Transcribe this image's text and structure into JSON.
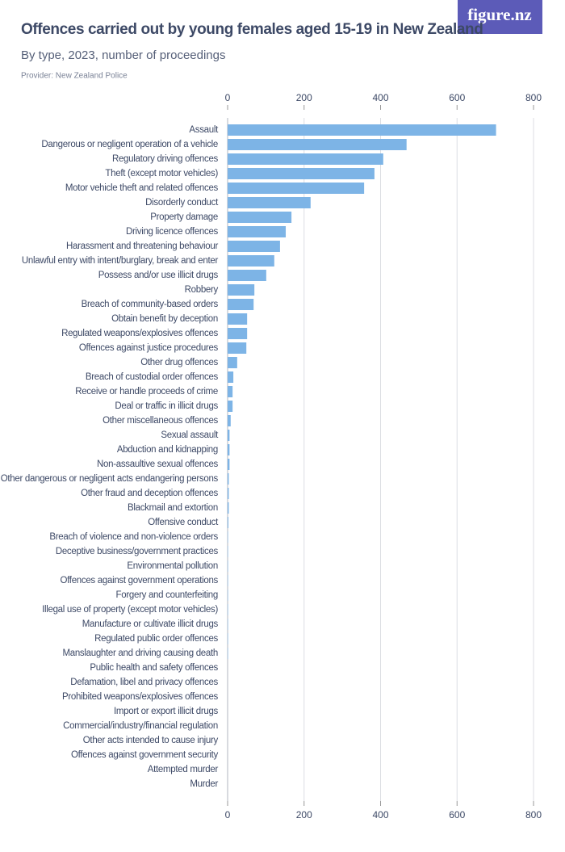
{
  "brand": "figure.nz",
  "chart_data": {
    "type": "hbar",
    "title": "Offences carried out by young females aged 15-19 in New Zealand",
    "subtitle": "By type, 2023, number of proceedings",
    "provider": "Provider: New Zealand Police",
    "color": "#7db4e6",
    "grid": true,
    "xlim": [
      0,
      800
    ],
    "xticks": [
      0,
      200,
      400,
      600,
      800
    ],
    "categories": [
      "Assault",
      "Dangerous or negligent operation of a vehicle",
      "Regulatory driving offences",
      "Theft (except motor vehicles)",
      "Motor vehicle theft and related offences",
      "Disorderly conduct",
      "Property damage",
      "Driving licence offences",
      "Harassment and threatening behaviour",
      "Unlawful entry with intent/burglary, break and enter",
      "Possess and/or use illicit drugs",
      "Robbery",
      "Breach of community-based orders",
      "Obtain benefit by deception",
      "Regulated weapons/explosives offences",
      "Offences against justice procedures",
      "Other drug offences",
      "Breach of custodial order offences",
      "Receive or handle proceeds of crime",
      "Deal or traffic in illicit drugs",
      "Other miscellaneous offences",
      "Sexual assault",
      "Abduction and kidnapping",
      "Non-assaultive sexual offences",
      "Other dangerous or negligent acts endangering persons",
      "Other fraud and deception offences",
      "Blackmail and extortion",
      "Offensive conduct",
      "Breach of violence and non-violence orders",
      "Deceptive business/government practices",
      "Environmental pollution",
      "Offences against government operations",
      "Forgery and counterfeiting",
      "Illegal use of property (except motor vehicles)",
      "Manufacture or cultivate illicit drugs",
      "Regulated public order offences",
      "Manslaughter and driving causing death",
      "Public health and safety offences",
      "Defamation, libel and privacy offences",
      "Prohibited weapons/explosives offences",
      "Import or export illicit drugs",
      "Commercial/industry/financial regulation",
      "Other acts intended to cause injury",
      "Offences against government security",
      "Attempted murder",
      "Murder"
    ],
    "values": [
      702,
      468,
      407,
      384,
      357,
      217,
      167,
      152,
      137,
      122,
      101,
      70,
      68,
      51,
      51,
      49,
      25,
      15,
      13,
      13,
      8,
      5,
      5,
      5,
      3,
      3,
      3,
      2,
      1,
      1,
      1,
      1,
      1,
      1,
      1,
      1,
      1,
      0,
      0,
      0,
      0,
      0,
      0,
      0,
      0,
      0
    ]
  }
}
